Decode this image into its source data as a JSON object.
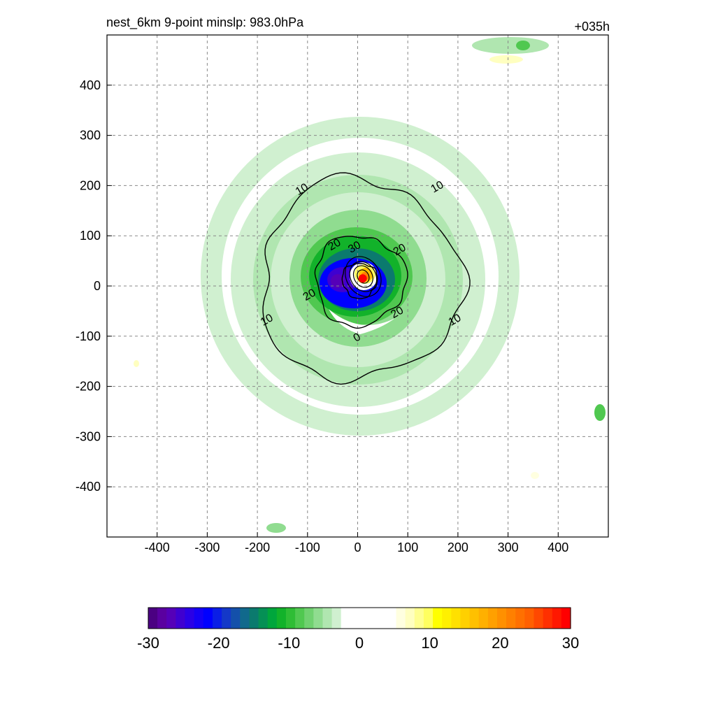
{
  "title_left": "nest_6km  9-point minslp: 983.0hPa",
  "title_right": "+035h",
  "chart_data": {
    "type": "contour",
    "xlim": [
      -500,
      500
    ],
    "ylim": [
      -500,
      500
    ],
    "xticks": [
      -400,
      -300,
      -200,
      -100,
      0,
      100,
      200,
      300,
      400
    ],
    "yticks": [
      -400,
      -300,
      -200,
      -100,
      0,
      100,
      200,
      300,
      400
    ],
    "grid": true,
    "grid_style": "dashed",
    "center": {
      "x": 10,
      "y": 15,
      "color": "#ff0000"
    },
    "line_contours": [
      {
        "value": 10,
        "label": "10",
        "radius": 200,
        "labels_at": [
          [
            -110,
            190
          ],
          [
            160,
            195
          ],
          [
            -180,
            -70
          ],
          [
            195,
            -70
          ]
        ]
      },
      {
        "value": 20,
        "label": "20",
        "radius": 90,
        "labels_at": [
          [
            -45,
            80
          ],
          [
            -95,
            -20
          ],
          [
            85,
            70
          ],
          [
            80,
            -55
          ]
        ]
      },
      {
        "value": 30,
        "label": "30",
        "radius": 35,
        "labels_at": [
          [
            -5,
            75
          ]
        ]
      },
      {
        "value": 0,
        "label": "0",
        "radius": 0,
        "labels_at": [
          [
            0,
            -105
          ]
        ]
      }
    ],
    "colorbar": {
      "min": -30,
      "max": 30,
      "tick_values": [
        -30,
        -20,
        -10,
        0,
        10,
        20,
        30
      ],
      "tick_labels": [
        "-30",
        "-20",
        "-10",
        "0",
        "10",
        "20",
        "30"
      ],
      "colors": [
        "#4b0082",
        "#5a00a0",
        "#5500b8",
        "#3f00d0",
        "#2a00e6",
        "#1400f5",
        "#0000ff",
        "#0a1ee6",
        "#1438c8",
        "#1450aa",
        "#11698c",
        "#0b7a6e",
        "#059055",
        "#00a63c",
        "#12b22a",
        "#2fbd35",
        "#50c850",
        "#70d170",
        "#90dc90",
        "#b0e6b0",
        "#d0f0d0",
        "#ffffff",
        "#ffffff",
        "#ffffff",
        "#ffffff",
        "#ffffff",
        "#ffffff",
        "#ffffe0",
        "#ffffc0",
        "#ffff90",
        "#ffff60",
        "#ffff00",
        "#fff000",
        "#ffe000",
        "#ffd000",
        "#ffc000",
        "#ffb000",
        "#ffa000",
        "#ff9000",
        "#ff8000",
        "#ff7000",
        "#ff6000",
        "#ff4800",
        "#ff3000",
        "#ff1800",
        "#ff0000"
      ]
    }
  }
}
